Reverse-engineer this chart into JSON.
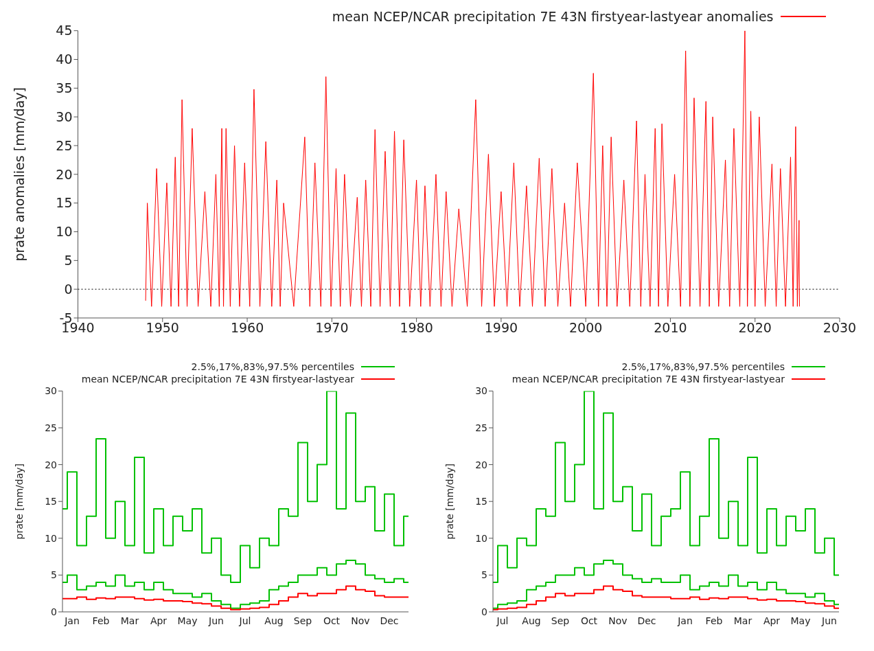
{
  "chart_data": [
    {
      "type": "line",
      "ylabel": "prate anomalies [mm/day]",
      "xlim": [
        1940,
        2030
      ],
      "xticks": [
        1940,
        1950,
        1960,
        1970,
        1980,
        1990,
        2000,
        2010,
        2020,
        2030
      ],
      "ylim": [
        -5,
        45
      ],
      "yticks": [
        -5,
        0,
        5,
        10,
        15,
        20,
        25,
        30,
        35,
        40,
        45
      ],
      "legend": "top right",
      "marker": "none",
      "line_style": "solid",
      "grid": false,
      "ref_lines": [
        {
          "axis": "y",
          "value": 0,
          "line_style": "dotted",
          "color": "#000000"
        }
      ],
      "x": [
        1948.0,
        1948.2,
        1948.7,
        1949.3,
        1949.9,
        1950.5,
        1951.0,
        1951.5,
        1951.9,
        1952.3,
        1952.9,
        1953.5,
        1954.2,
        1955.0,
        1955.7,
        1956.3,
        1956.7,
        1957.0,
        1957.2,
        1957.5,
        1958.0,
        1958.5,
        1959.1,
        1959.7,
        1960.3,
        1960.8,
        1961.5,
        1962.2,
        1962.9,
        1963.5,
        1963.9,
        1964.3,
        1965.5,
        1966.8,
        1967.4,
        1968.0,
        1968.7,
        1969.3,
        1969.9,
        1970.5,
        1971.0,
        1971.5,
        1972.2,
        1973.0,
        1973.5,
        1974.0,
        1974.6,
        1975.1,
        1975.7,
        1976.3,
        1976.9,
        1977.4,
        1978.0,
        1978.5,
        1979.2,
        1980.0,
        1980.5,
        1981.0,
        1981.6,
        1982.3,
        1982.9,
        1983.5,
        1984.2,
        1985.0,
        1986.0,
        1987.0,
        1987.7,
        1988.5,
        1989.2,
        1990.0,
        1990.7,
        1991.5,
        1992.2,
        1993.0,
        1993.7,
        1994.5,
        1995.2,
        1996.0,
        1996.7,
        1997.5,
        1998.2,
        1999.0,
        2000.0,
        2000.9,
        2001.5,
        2002.0,
        2002.5,
        2003.0,
        2003.7,
        2004.5,
        2005.2,
        2006.0,
        2006.5,
        2007.0,
        2007.6,
        2008.2,
        2008.6,
        2009.0,
        2009.7,
        2010.5,
        2011.2,
        2011.8,
        2012.3,
        2012.8,
        2013.5,
        2014.2,
        2014.6,
        2015.0,
        2015.7,
        2016.5,
        2017.0,
        2017.5,
        2018.2,
        2018.8,
        2019.1,
        2019.5,
        2020.0,
        2020.5,
        2021.2,
        2022.0,
        2022.5,
        2023.0,
        2023.6,
        2024.2,
        2024.5,
        2024.8,
        2025.0,
        2025.2,
        2025.25
      ],
      "series": [
        {
          "name": "mean NCEP/NCAR precipitation 7E 43N firstyear-lastyear anomalies",
          "color": "#ff0000",
          "values": [
            -2,
            15,
            -3,
            21,
            -3,
            18.5,
            -3,
            23,
            -3,
            33,
            -3,
            28,
            -3,
            17,
            -3,
            20,
            -3,
            28,
            -3,
            28,
            -3,
            25,
            -3,
            22,
            -3,
            34.8,
            -3,
            25.7,
            -3,
            19,
            -3,
            15,
            -3,
            26.5,
            -3,
            22,
            -3,
            37,
            -3,
            21,
            -3,
            20,
            -3,
            16,
            -3,
            19,
            -3,
            27.8,
            -3,
            24,
            -3,
            27.5,
            -3,
            26,
            -3,
            19,
            -3,
            18,
            -3,
            20,
            -3,
            17,
            -3,
            14,
            -3,
            33,
            -3,
            23.5,
            -3,
            17,
            -3,
            22,
            -3,
            18,
            -3,
            22.8,
            -3,
            21,
            -3,
            15,
            -3,
            22,
            -3,
            37.6,
            -3,
            25,
            -3,
            26.5,
            -3,
            19,
            -3,
            29.3,
            -3,
            20,
            -3,
            28,
            -3,
            28.8,
            -3,
            20,
            -3,
            41.5,
            -3,
            33.3,
            -3,
            32.7,
            -3,
            30,
            -3,
            22.5,
            -3,
            28,
            -3,
            45,
            -3,
            31,
            -3,
            30,
            -3,
            21.8,
            -3,
            21,
            -3,
            23,
            -3,
            28.3,
            -3,
            12,
            -3
          ]
        }
      ]
    },
    {
      "type": "step",
      "ylabel": "prate [mm/day]",
      "ylim": [
        0,
        30
      ],
      "yticks": [
        0,
        5,
        10,
        15,
        20,
        25,
        30
      ],
      "legend": "top right",
      "marker": "none",
      "line_style": "solid",
      "grid": false,
      "categories": [
        null,
        "Jan",
        null,
        null,
        "Feb",
        null,
        null,
        "Mar",
        null,
        null,
        "Apr",
        null,
        null,
        "May",
        null,
        null,
        "Jun",
        null,
        null,
        "Jul",
        null,
        null,
        "Aug",
        null,
        null,
        "Sep",
        null,
        null,
        "Oct",
        null,
        null,
        "Nov",
        null,
        null,
        "Dec",
        null,
        null
      ],
      "series": [
        {
          "name": "2.5%,17%,83%,97.5% percentiles",
          "color": "#00c000",
          "values": [
            14,
            19,
            9,
            13,
            23.5,
            10,
            15,
            9,
            21,
            8,
            14,
            9,
            13,
            11,
            14,
            8,
            10,
            5,
            4,
            9,
            6,
            10,
            9,
            14,
            13,
            23,
            15,
            20,
            30,
            14,
            27,
            15,
            17,
            11,
            16,
            9,
            13
          ]
        },
        {
          "color": "#00c000",
          "values": [
            4,
            5,
            3,
            3.5,
            4,
            3.5,
            5,
            3.5,
            4,
            3,
            4,
            3,
            2.5,
            2.5,
            2,
            2.5,
            1.5,
            1,
            0.5,
            1,
            1.2,
            1.5,
            3,
            3.5,
            4,
            5,
            5,
            6,
            5,
            6.5,
            7,
            6.5,
            5,
            4.5,
            4,
            4.5,
            4
          ]
        },
        {
          "name": "mean NCEP/NCAR precipitation 7E 43N firstyear-lastyear",
          "color": "#ff0000",
          "values": [
            1.8,
            1.8,
            2,
            1.7,
            1.9,
            1.8,
            2,
            2,
            1.8,
            1.6,
            1.7,
            1.5,
            1.5,
            1.4,
            1.2,
            1.1,
            0.8,
            0.5,
            0.3,
            0.4,
            0.5,
            0.6,
            1,
            1.5,
            2,
            2.5,
            2.2,
            2.5,
            2.5,
            3,
            3.5,
            3,
            2.8,
            2.2,
            2,
            2,
            2
          ]
        }
      ]
    },
    {
      "type": "step",
      "ylabel": "prate [mm/day]",
      "ylim": [
        0,
        30
      ],
      "yticks": [
        0,
        5,
        10,
        15,
        20,
        25,
        30
      ],
      "legend": "top right",
      "marker": "none",
      "line_style": "solid",
      "grid": false,
      "categories": [
        null,
        "Jul",
        null,
        null,
        "Aug",
        null,
        null,
        "Sep",
        null,
        null,
        "Oct",
        null,
        null,
        "Nov",
        null,
        null,
        "Dec",
        null,
        null,
        null,
        "Jan",
        null,
        null,
        "Feb",
        null,
        null,
        "Mar",
        null,
        null,
        "Apr",
        null,
        null,
        "May",
        null,
        null,
        "Jun",
        null
      ],
      "series": [
        {
          "name": "2.5%,17%,83%,97.5% percentiles",
          "color": "#00c000",
          "values": [
            4,
            9,
            6,
            10,
            9,
            14,
            13,
            23,
            15,
            20,
            30,
            14,
            27,
            15,
            17,
            11,
            16,
            9,
            13,
            14,
            19,
            9,
            13,
            23.5,
            10,
            15,
            9,
            21,
            8,
            14,
            9,
            13,
            11,
            14,
            8,
            10,
            5
          ]
        },
        {
          "color": "#00c000",
          "values": [
            0.5,
            1,
            1.2,
            1.5,
            3,
            3.5,
            4,
            5,
            5,
            6,
            5,
            6.5,
            7,
            6.5,
            5,
            4.5,
            4,
            4.5,
            4,
            4,
            5,
            3,
            3.5,
            4,
            3.5,
            5,
            3.5,
            4,
            3,
            4,
            3,
            2.5,
            2.5,
            2,
            2.5,
            1.5,
            1
          ]
        },
        {
          "name": "mean NCEP/NCAR precipitation 7E 43N firstyear-lastyear",
          "color": "#ff0000",
          "values": [
            0.3,
            0.4,
            0.5,
            0.6,
            1,
            1.5,
            2,
            2.5,
            2.2,
            2.5,
            2.5,
            3,
            3.5,
            3,
            2.8,
            2.2,
            2,
            2,
            2,
            1.8,
            1.8,
            2,
            1.7,
            1.9,
            1.8,
            2,
            2,
            1.8,
            1.6,
            1.7,
            1.5,
            1.5,
            1.4,
            1.2,
            1.1,
            0.8,
            0.5
          ]
        }
      ]
    }
  ]
}
